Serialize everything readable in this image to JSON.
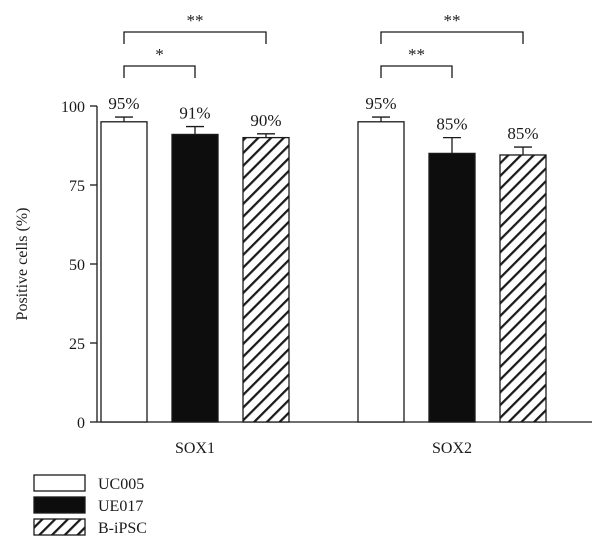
{
  "chart_data": {
    "type": "bar",
    "ylabel": "Positive cells (%)",
    "ylim": [
      0,
      100
    ],
    "yticks": [
      0,
      25,
      50,
      75,
      100
    ],
    "categories": [
      "SOX1",
      "SOX2"
    ],
    "series": [
      {
        "name": "UC005",
        "fill": "white",
        "values": [
          95,
          95
        ],
        "errors": [
          1.5,
          1.5
        ],
        "labels": [
          "95%",
          "95%"
        ]
      },
      {
        "name": "UE017",
        "fill": "black",
        "values": [
          91,
          85
        ],
        "errors": [
          2.5,
          5
        ],
        "labels": [
          "91%",
          "85%"
        ]
      },
      {
        "name": "B-iPSC",
        "fill": "hatch",
        "values": [
          90,
          84.5
        ],
        "errors": [
          1.2,
          2.5
        ],
        "labels": [
          "90%",
          "85%"
        ]
      }
    ],
    "significance": [
      {
        "category": 0,
        "from": 0,
        "to": 1,
        "label": "*"
      },
      {
        "category": 0,
        "from": 0,
        "to": 2,
        "label": "**"
      },
      {
        "category": 1,
        "from": 0,
        "to": 1,
        "label": "**"
      },
      {
        "category": 1,
        "from": 0,
        "to": 2,
        "label": "**"
      }
    ],
    "legend": {
      "position": "bottom-left"
    },
    "grid": false
  },
  "colors": {
    "axis": "#1a1a1a",
    "background": "#ffffff"
  }
}
